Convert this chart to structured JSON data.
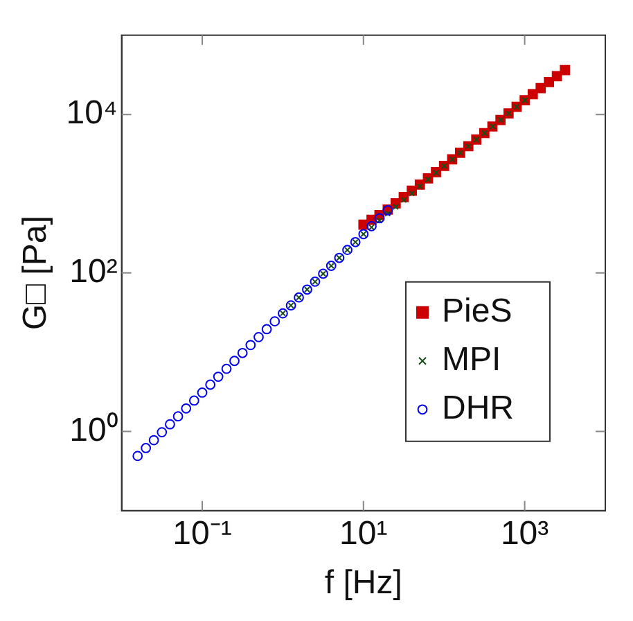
{
  "chart_data": {
    "type": "scatter",
    "xlabel": "f [Hz]",
    "ylabel": "G□ [Pa]",
    "log": "xy",
    "grid": false,
    "legend": "right",
    "xlim": [
      0.01,
      10000
    ],
    "ylim": [
      0.1,
      100000
    ],
    "xticks": [
      {
        "value": 0.1,
        "label": "10⁻¹"
      },
      {
        "value": 10,
        "label": "10¹"
      },
      {
        "value": 1000,
        "label": "10³"
      }
    ],
    "yticks": [
      {
        "value": 1,
        "label": "10⁰"
      },
      {
        "value": 100,
        "label": "10²"
      },
      {
        "value": 10000,
        "label": "10⁴"
      }
    ],
    "series": [
      {
        "name": "PieS",
        "color": "#cc0000",
        "marker": "square",
        "x": [
          10,
          12.6,
          15.8,
          20.0,
          25.1,
          31.6,
          39.8,
          50.1,
          63.1,
          79.4,
          100,
          126,
          158,
          200,
          251,
          316,
          398,
          501,
          631,
          794,
          1000,
          1260,
          1580,
          2000,
          2510,
          3160
        ],
        "values": [
          407,
          468,
          537,
          631,
          757,
          906,
          1090,
          1300,
          1560,
          1870,
          2240,
          2710,
          3280,
          3970,
          4810,
          5820,
          7050,
          8530,
          10300,
          12500,
          15100,
          18000,
          21500,
          25600,
          30500,
          36300
        ]
      },
      {
        "name": "MPI",
        "color": "#1a4d1a",
        "marker": "cross",
        "x": [
          1,
          1.26,
          1.58,
          2.0,
          2.51,
          3.16,
          3.98,
          5.01,
          6.31,
          7.94,
          10,
          12.6,
          15.8,
          20.0,
          25.1,
          31.6,
          39.8,
          50.1,
          63.1,
          79.4,
          100,
          126,
          158,
          200,
          251,
          316,
          398,
          501,
          631,
          794,
          1000
        ],
        "values": [
          30.9,
          38.9,
          49.0,
          61.7,
          77.6,
          97.7,
          123,
          155,
          195,
          245,
          309,
          377,
          459,
          560,
          682,
          832,
          1010,
          1240,
          1510,
          1840,
          2240,
          2710,
          3280,
          3970,
          4810,
          5820,
          7050,
          8530,
          10300,
          12500,
          15100
        ]
      },
      {
        "name": "DHR",
        "color": "#0000ee",
        "marker": "circle",
        "x": [
          0.0158,
          0.02,
          0.0251,
          0.0316,
          0.0398,
          0.0501,
          0.0631,
          0.0794,
          0.1,
          0.126,
          0.158,
          0.2,
          0.251,
          0.316,
          0.398,
          0.501,
          0.631,
          0.794,
          1,
          1.26,
          1.58,
          2.0,
          2.51,
          3.16,
          3.98,
          5.01,
          6.31,
          7.94,
          10,
          12.6,
          15.8,
          20.0
        ],
        "values": [
          0.49,
          0.617,
          0.776,
          0.977,
          1.23,
          1.55,
          1.95,
          2.45,
          3.09,
          3.89,
          4.9,
          6.17,
          7.76,
          9.77,
          12.3,
          15.5,
          19.5,
          24.5,
          30.9,
          38.9,
          49.0,
          61.7,
          77.6,
          97.7,
          123,
          155,
          195,
          245,
          309,
          389,
          490,
          617
        ]
      }
    ]
  }
}
